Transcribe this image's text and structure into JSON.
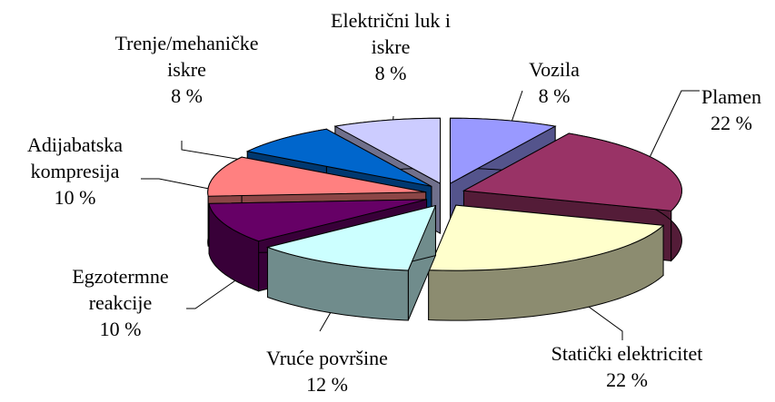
{
  "chart_data": {
    "type": "pie3d",
    "categories": [
      "Vozila",
      "Plamen",
      "Statički elektricitet",
      "Vruće površine",
      "Egzotermne reakcije",
      "Adijabatska kompresija",
      "Trenje/mehaničke iskre",
      "Električni luk i iskre"
    ],
    "values": [
      8,
      22,
      22,
      12,
      10,
      10,
      8,
      8
    ],
    "value_labels": [
      "8 %",
      "22 %",
      "22 %",
      "12 %",
      "10 %",
      "10 %",
      "8 %",
      "8 %"
    ],
    "colors": [
      "#9999ff",
      "#993366",
      "#ffffcc",
      "#ccffff",
      "#660066",
      "#ff8080",
      "#0066cc",
      "#ccccff"
    ]
  }
}
